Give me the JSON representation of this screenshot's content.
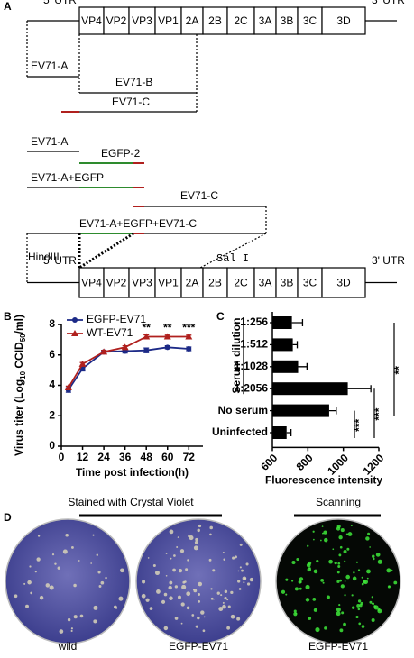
{
  "panel_labels": [
    "A",
    "B",
    "C",
    "D"
  ],
  "diagram": {
    "utr5": "5' UTR",
    "utr3": "3' UTR",
    "segments": [
      "VP4",
      "VP2",
      "VP3",
      "VP1",
      "2A",
      "2B",
      "2C",
      "3A",
      "3B",
      "3C",
      "3D"
    ],
    "fragments": [
      "EV71-A",
      "EV71-B",
      "EV71-C"
    ],
    "constructs": [
      "EV71-A",
      "EGFP-2",
      "EV71-A+EGFP",
      "EV71-C",
      "EV71-A+EGFP+EV71-C"
    ],
    "sites": [
      "HindIII",
      "Sal I"
    ]
  },
  "chart_data": [
    {
      "type": "line",
      "x": [
        4,
        12,
        24,
        36,
        48,
        60,
        72
      ],
      "xlim": [
        0,
        80
      ],
      "xticks": [
        0,
        12,
        24,
        36,
        48,
        60,
        72
      ],
      "ylim": [
        0,
        8
      ],
      "yticks": [
        0,
        2,
        4,
        6,
        8
      ],
      "xlabel": "Time post infection(h)",
      "ylabel": [
        "Virus titer (Log",
        "10",
        " CCID",
        "50",
        "/ml)"
      ],
      "legend": "upper left",
      "series": [
        {
          "name": "EGFP-EV71",
          "color": "#1c2a87",
          "marker": "circle",
          "values": [
            3.7,
            5.1,
            6.2,
            6.25,
            6.3,
            6.5,
            6.4
          ],
          "errors": [
            0.15,
            0.15,
            0.1,
            0.12,
            0.15,
            0.1,
            0.12
          ]
        },
        {
          "name": "WT-EV71",
          "color": "#b0201e",
          "marker": "triangle",
          "values": [
            3.85,
            5.4,
            6.2,
            6.5,
            7.2,
            7.2,
            7.2
          ],
          "errors": [
            0.1,
            0.1,
            0.1,
            0.1,
            0.12,
            0.1,
            0.1
          ]
        }
      ],
      "annotations": [
        {
          "x": 48,
          "text": "**"
        },
        {
          "x": 60,
          "text": "**"
        },
        {
          "x": 72,
          "text": "***"
        }
      ]
    },
    {
      "type": "barh",
      "categories": [
        "1:256",
        "1:512",
        "1:1028",
        "1:2056",
        "No serum",
        "Uninfected"
      ],
      "values": [
        710,
        715,
        745,
        1025,
        920,
        680
      ],
      "errors": [
        60,
        25,
        50,
        130,
        40,
        25
      ],
      "color": "#000000",
      "xlim": [
        600,
        1200
      ],
      "xticks": [
        600,
        800,
        1000,
        1200
      ],
      "xlabel": "Fluorescence intensity",
      "ylabel": "Serum dilution",
      "comparisons": [
        {
          "text": "***",
          "between": [
            "No serum",
            "Uninfected"
          ]
        },
        {
          "text": "***",
          "between": [
            "1:2056",
            "Uninfected"
          ]
        },
        {
          "text": "**",
          "between": [
            "1:256",
            "No serum"
          ]
        }
      ]
    }
  ],
  "images": {
    "headers": [
      "Stained with Crystal Violet",
      "Scanning"
    ],
    "captions": [
      "wild",
      "EGFP-EV71",
      "EGFP-EV71"
    ]
  }
}
